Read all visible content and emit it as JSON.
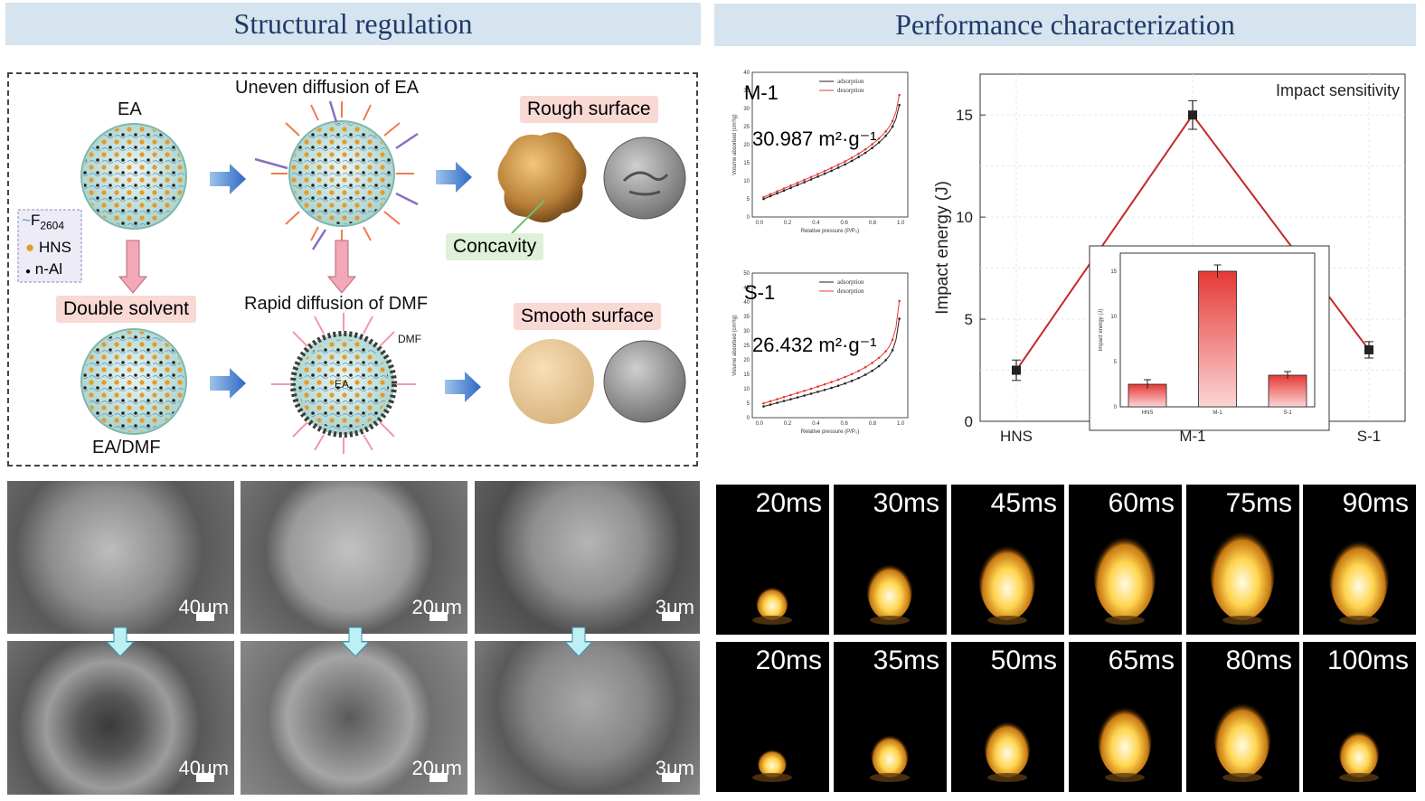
{
  "headers": {
    "left": "Structural regulation",
    "right": "Performance characterization"
  },
  "structural": {
    "ea": "EA",
    "uneven": "Uneven diffusion of EA",
    "rough": "Rough surface",
    "concavity": "Concavity",
    "double_solvent": "Double solvent",
    "rapid": "Rapid diffusion of DMF",
    "smooth": "Smooth surface",
    "ea_dmf": "EA/DMF",
    "dmf": "DMF",
    "ea_center": "EA",
    "legend": {
      "f2604": "F",
      "f2604_sub": "2604",
      "hns": "HNS",
      "nal": "n-Al"
    }
  },
  "sem": {
    "top": [
      "40μm",
      "20μm",
      "3μm"
    ],
    "bottom": [
      "40μm",
      "20μm",
      "3μm"
    ]
  },
  "bet": [
    {
      "sample": "M-1",
      "area": "30.987 m²·g⁻¹",
      "legend": [
        "adsorption",
        "desorption"
      ],
      "xlabel": "Relative pressure (P/P₀)",
      "ylabel": "Volume absorbed (cm³/g)",
      "yticks": [
        "0",
        "5",
        "10",
        "15",
        "20",
        "25",
        "30",
        "35",
        "40"
      ],
      "xticks": [
        "0.0",
        "0.2",
        "0.4",
        "0.6",
        "0.8",
        "1.0"
      ]
    },
    {
      "sample": "S-1",
      "area": "26.432 m²·g⁻¹",
      "legend": [
        "adsorption",
        "desorption"
      ],
      "xlabel": "Relative pressure (P/P₀)",
      "ylabel": "Volume absorbed (cm³/g)",
      "yticks": [
        "0",
        "5",
        "10",
        "15",
        "20",
        "25",
        "30",
        "35",
        "40",
        "45",
        "50"
      ],
      "xticks": [
        "0.0",
        "0.2",
        "0.4",
        "0.6",
        "0.8",
        "1.0"
      ]
    }
  ],
  "chart_data": [
    {
      "type": "line",
      "title": "Impact sensitivity",
      "categories": [
        "HNS",
        "M-1",
        "S-1"
      ],
      "values": [
        2.5,
        15,
        3.5
      ],
      "errors": [
        0.5,
        0.7,
        0.4
      ],
      "ylabel": "Impact energy (J)",
      "ylim": [
        0,
        17
      ],
      "yticks": [
        0,
        5,
        10,
        15
      ],
      "grid": true,
      "color": "#c62828"
    },
    {
      "type": "bar",
      "categories": [
        "HNS",
        "M-1",
        "S-1"
      ],
      "values": [
        2.5,
        15,
        3.5
      ],
      "errors": [
        0.5,
        0.7,
        0.4
      ],
      "ylabel": "Impact energy (J)",
      "ylim": [
        0,
        17
      ],
      "yticks": [
        0,
        5,
        10,
        15
      ]
    }
  ],
  "combustion": {
    "row1": [
      "20ms",
      "30ms",
      "45ms",
      "60ms",
      "75ms",
      "90ms"
    ],
    "row2": [
      "20ms",
      "35ms",
      "50ms",
      "65ms",
      "80ms",
      "100ms"
    ]
  }
}
